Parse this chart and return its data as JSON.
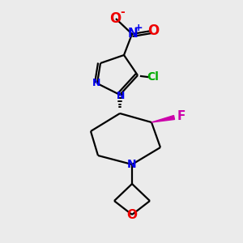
{
  "bg_color": "#ebebeb",
  "atom_colors": {
    "C": "#000000",
    "N": "#0000ee",
    "O": "#ee0000",
    "F": "#cc00aa",
    "Cl": "#00aa00"
  },
  "bond_color": "#000000",
  "figsize": [
    3.0,
    3.0
  ],
  "dpi": 100
}
